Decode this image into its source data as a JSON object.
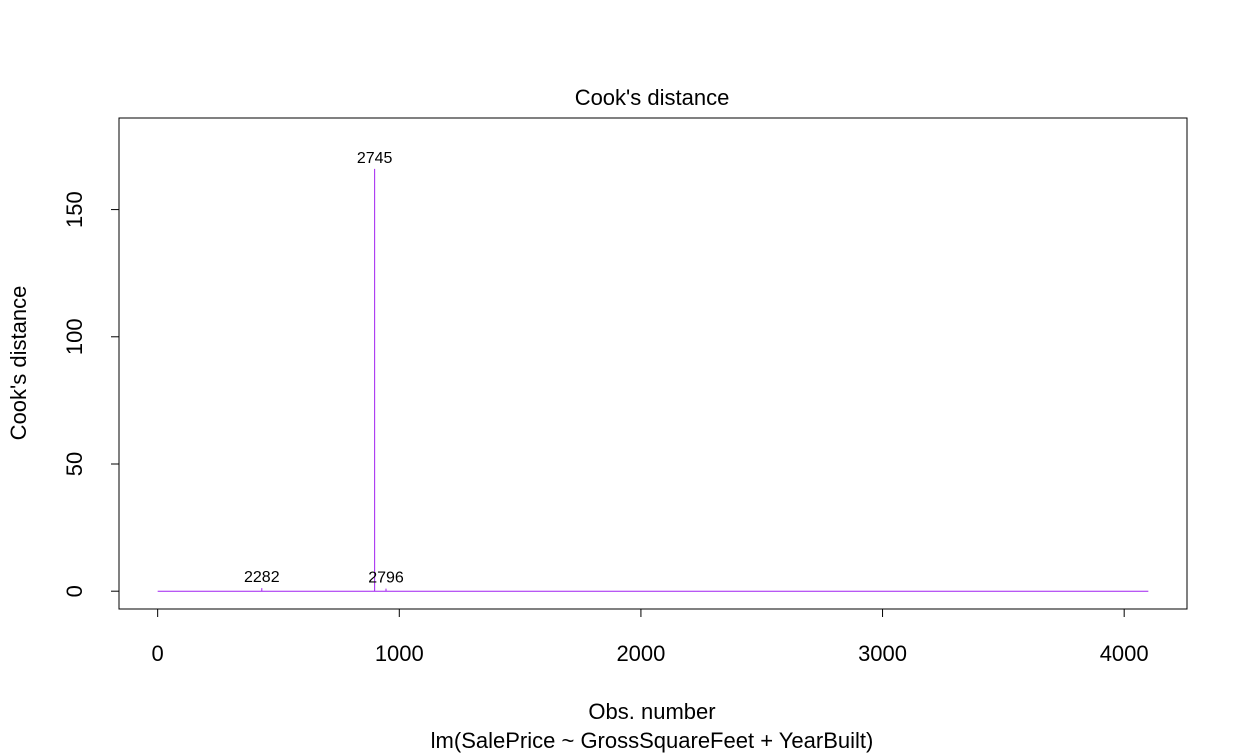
{
  "chart_data": {
    "type": "line",
    "plot_style": "histogram-spikes",
    "title": "Cook's distance",
    "xlabel": "Obs. number",
    "subtitle": "lm(SalePrice ~ GrossSquareFeet + YearBuilt)",
    "ylabel": "Cook's distance",
    "xlim": [
      -160,
      4260
    ],
    "ylim": [
      -7,
      186
    ],
    "x_ticks": [
      0,
      1000,
      2000,
      3000,
      4000
    ],
    "x_tick_labels": [
      "0",
      "1000",
      "2000",
      "3000",
      "4000"
    ],
    "y_ticks": [
      0,
      50,
      100,
      150
    ],
    "y_tick_labels": [
      "0",
      "50",
      "100",
      "150"
    ],
    "grid": false,
    "legend": "none",
    "baseline_x_range": [
      0,
      4100
    ],
    "colors": {
      "line": "#a020f0",
      "text": "#000000",
      "frame": "#000000"
    },
    "series": [
      {
        "points": [
          {
            "x": 431,
            "y": 1.2
          },
          {
            "x": 898,
            "y": 166
          },
          {
            "x": 945,
            "y": 1.0
          }
        ]
      }
    ],
    "annotations": [
      {
        "label": "2282",
        "x": 431,
        "y": 1.2
      },
      {
        "label": "2745",
        "x": 898,
        "y": 166
      },
      {
        "label": "2796",
        "x": 945,
        "y": 1.0
      }
    ]
  }
}
